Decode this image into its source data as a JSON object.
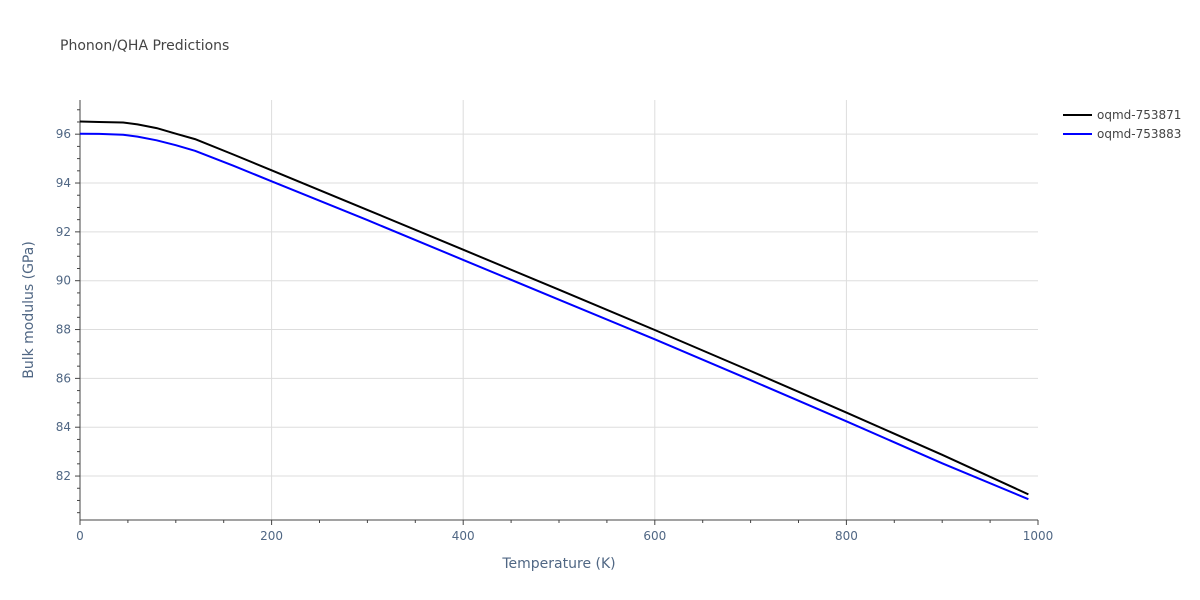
{
  "chart_data": {
    "type": "line",
    "title": "Phonon/QHA Predictions",
    "xlabel": "Temperature (K)",
    "ylabel": "Bulk modulus (GPa)",
    "xlim": [
      0,
      1000
    ],
    "ylim": [
      80.2,
      97.4
    ],
    "x_ticks": [
      0,
      200,
      400,
      600,
      800,
      1000
    ],
    "y_ticks": [
      82,
      84,
      86,
      88,
      90,
      92,
      94,
      96
    ],
    "grid": true,
    "legend_position": "top-right",
    "series": [
      {
        "name": "oqmd-753871",
        "color": "#000000",
        "x": [
          0,
          20,
          45,
          60,
          80,
          100,
          120,
          160,
          200,
          300,
          400,
          500,
          600,
          700,
          800,
          900,
          990
        ],
        "y": [
          96.52,
          96.5,
          96.48,
          96.4,
          96.25,
          96.02,
          95.8,
          95.17,
          94.52,
          92.9,
          91.27,
          89.63,
          87.98,
          86.3,
          84.6,
          82.87,
          81.25
        ]
      },
      {
        "name": "oqmd-753883",
        "color": "#0000ff",
        "x": [
          0,
          20,
          45,
          60,
          80,
          100,
          120,
          160,
          200,
          300,
          400,
          500,
          600,
          700,
          800,
          900,
          990
        ],
        "y": [
          96.02,
          96.01,
          95.98,
          95.9,
          95.75,
          95.55,
          95.32,
          94.71,
          94.07,
          92.48,
          90.85,
          89.22,
          87.6,
          85.93,
          84.24,
          82.52,
          81.05
        ]
      }
    ]
  }
}
